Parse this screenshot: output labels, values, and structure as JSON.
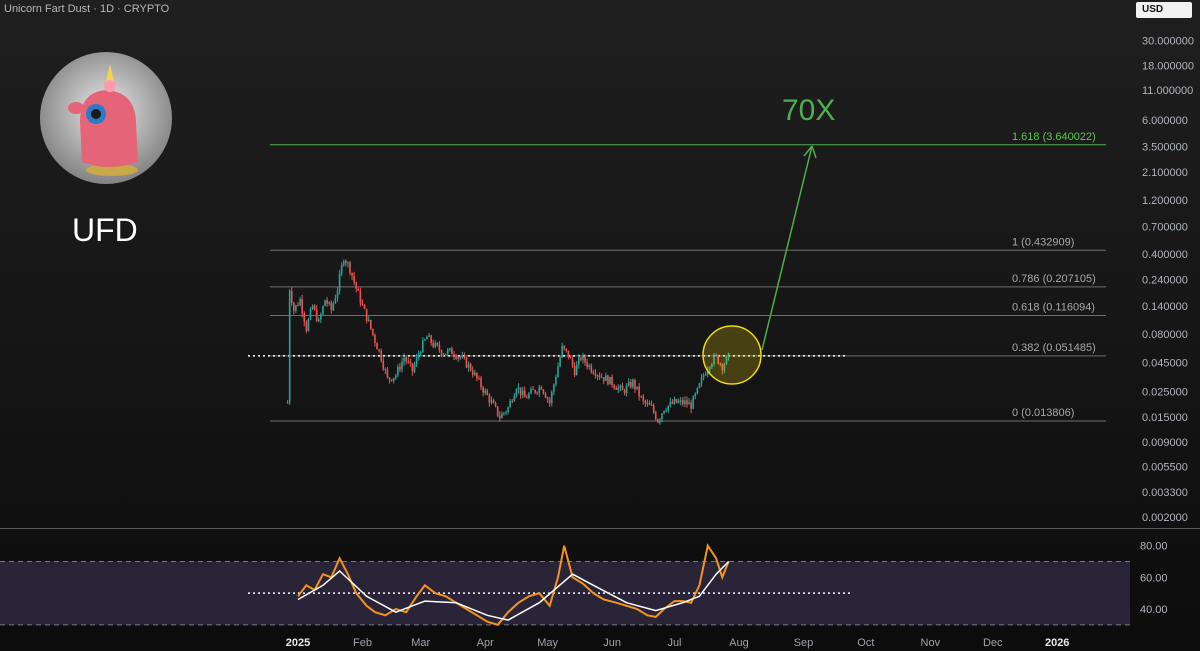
{
  "header": {
    "symbol_line": "Unicorn Fart Dust · 1D · CRYPTO",
    "currency": "USD"
  },
  "ticker": "UFD",
  "colors": {
    "up": "#26a69a",
    "down": "#ef5350",
    "target": "#4caf50",
    "highlight": "#f5d90a",
    "rsi": "#f7931a",
    "rsi_ma": "#ffffff",
    "rsi_band": "#2a2438"
  },
  "icons": {
    "logo": "pink-unicorn-figure-icon"
  },
  "chart_data": [
    {
      "type": "candlestick",
      "scale": "log",
      "ylim": [
        0.0018,
        40
      ],
      "y_ticks": [
        "30.000000",
        "18.000000",
        "11.000000",
        "6.000000",
        "3.500000",
        "2.100000",
        "1.200000",
        "0.700000",
        "0.400000",
        "0.240000",
        "0.140000",
        "0.080000",
        "0.045000",
        "0.025000",
        "0.015000",
        "0.009000",
        "0.005500",
        "0.003300",
        "0.002000"
      ],
      "x_ticks": [
        "2025",
        "Feb",
        "Mar",
        "Apr",
        "May",
        "Jun",
        "Jul",
        "Aug",
        "Sep",
        "Oct",
        "Nov",
        "Dec",
        "2026"
      ],
      "fib_levels": [
        {
          "label": "1.618 (3.640022)",
          "value": 3.640022
        },
        {
          "label": "1 (0.432909)",
          "value": 0.432909
        },
        {
          "label": "0.786 (0.207105)",
          "value": 0.207105
        },
        {
          "label": "0.618 (0.116094)",
          "value": 0.116094
        },
        {
          "label": "0.382 (0.051485)",
          "value": 0.051485
        },
        {
          "label": "0 (0.013806)",
          "value": 0.013806
        }
      ],
      "target_label": "70X",
      "close_path": [
        [
          "2024-12-27",
          0.02
        ],
        [
          "2024-12-28",
          0.2
        ],
        [
          "2024-12-30",
          0.13
        ],
        [
          "2025-01-02",
          0.16
        ],
        [
          "2025-01-05",
          0.09
        ],
        [
          "2025-01-08",
          0.14
        ],
        [
          "2025-01-11",
          0.1
        ],
        [
          "2025-01-14",
          0.16
        ],
        [
          "2025-01-17",
          0.13
        ],
        [
          "2025-01-20",
          0.2
        ],
        [
          "2025-01-23",
          0.38
        ],
        [
          "2025-01-26",
          0.3
        ],
        [
          "2025-01-29",
          0.2
        ],
        [
          "2025-02-01",
          0.14
        ],
        [
          "2025-02-04",
          0.1
        ],
        [
          "2025-02-07",
          0.07
        ],
        [
          "2025-02-10",
          0.05
        ],
        [
          "2025-02-13",
          0.032
        ],
        [
          "2025-02-17",
          0.035
        ],
        [
          "2025-02-21",
          0.05
        ],
        [
          "2025-02-25",
          0.038
        ],
        [
          "2025-03-01",
          0.06
        ],
        [
          "2025-03-04",
          0.075
        ],
        [
          "2025-03-08",
          0.062
        ],
        [
          "2025-03-12",
          0.055
        ],
        [
          "2025-03-16",
          0.056
        ],
        [
          "2025-03-20",
          0.05
        ],
        [
          "2025-03-25",
          0.04
        ],
        [
          "2025-03-30",
          0.028
        ],
        [
          "2025-04-04",
          0.02
        ],
        [
          "2025-04-08",
          0.015
        ],
        [
          "2025-04-12",
          0.018
        ],
        [
          "2025-04-16",
          0.028
        ],
        [
          "2025-04-20",
          0.022
        ],
        [
          "2025-04-24",
          0.025
        ],
        [
          "2025-04-28",
          0.028
        ],
        [
          "2025-05-02",
          0.02
        ],
        [
          "2025-05-05",
          0.035
        ],
        [
          "2025-05-08",
          0.06
        ],
        [
          "2025-05-11",
          0.052
        ],
        [
          "2025-05-14",
          0.038
        ],
        [
          "2025-05-17",
          0.05
        ],
        [
          "2025-05-22",
          0.04
        ],
        [
          "2025-05-27",
          0.034
        ],
        [
          "2025-06-01",
          0.03
        ],
        [
          "2025-06-06",
          0.025
        ],
        [
          "2025-06-11",
          0.03
        ],
        [
          "2025-06-16",
          0.02
        ],
        [
          "2025-06-20",
          0.018
        ],
        [
          "2025-06-23",
          0.014
        ],
        [
          "2025-06-26",
          0.018
        ],
        [
          "2025-07-01",
          0.02
        ],
        [
          "2025-07-06",
          0.02
        ],
        [
          "2025-07-09",
          0.019
        ],
        [
          "2025-07-12",
          0.025
        ],
        [
          "2025-07-15",
          0.035
        ],
        [
          "2025-07-18",
          0.045
        ],
        [
          "2025-07-21",
          0.05
        ],
        [
          "2025-07-24",
          0.042
        ],
        [
          "2025-07-27",
          0.05
        ]
      ]
    },
    {
      "type": "line",
      "name": "RSI",
      "ylim": [
        28,
        88
      ],
      "y_ticks": [
        "80.00",
        "60.00",
        "40.00"
      ],
      "bands": [
        30,
        70
      ],
      "midline": 50,
      "series": [
        {
          "name": "",
          "values": [
            [
              "2025-01-01",
              48
            ],
            [
              "2025-01-05",
              55
            ],
            [
              "2025-01-09",
              52
            ],
            [
              "2025-01-13",
              62
            ],
            [
              "2025-01-17",
              60
            ],
            [
              "2025-01-21",
              72
            ],
            [
              "2025-01-25",
              62
            ],
            [
              "2025-01-29",
              50
            ],
            [
              "2025-02-03",
              42
            ],
            [
              "2025-02-07",
              38
            ],
            [
              "2025-02-12",
              36
            ],
            [
              "2025-02-17",
              40
            ],
            [
              "2025-02-22",
              38
            ],
            [
              "2025-02-27",
              48
            ],
            [
              "2025-03-03",
              55
            ],
            [
              "2025-03-08",
              50
            ],
            [
              "2025-03-13",
              48
            ],
            [
              "2025-03-18",
              44
            ],
            [
              "2025-03-23",
              40
            ],
            [
              "2025-03-28",
              36
            ],
            [
              "2025-04-02",
              32
            ],
            [
              "2025-04-07",
              30
            ],
            [
              "2025-04-12",
              38
            ],
            [
              "2025-04-17",
              44
            ],
            [
              "2025-04-22",
              48
            ],
            [
              "2025-04-27",
              50
            ],
            [
              "2025-05-02",
              42
            ],
            [
              "2025-05-06",
              60
            ],
            [
              "2025-05-09",
              80
            ],
            [
              "2025-05-13",
              60
            ],
            [
              "2025-05-18",
              56
            ],
            [
              "2025-05-23",
              50
            ],
            [
              "2025-05-28",
              46
            ],
            [
              "2025-06-03",
              44
            ],
            [
              "2025-06-08",
              42
            ],
            [
              "2025-06-13",
              40
            ],
            [
              "2025-06-18",
              36
            ],
            [
              "2025-06-22",
              35
            ],
            [
              "2025-06-26",
              40
            ],
            [
              "2025-07-01",
              45
            ],
            [
              "2025-07-05",
              45
            ],
            [
              "2025-07-09",
              44
            ],
            [
              "2025-07-13",
              55
            ],
            [
              "2025-07-17",
              80
            ],
            [
              "2025-07-21",
              72
            ],
            [
              "2025-07-24",
              60
            ],
            [
              "2025-07-27",
              70
            ]
          ]
        },
        {
          "name": "",
          "values": [
            [
              "2025-01-01",
              46
            ],
            [
              "2025-01-13",
              55
            ],
            [
              "2025-01-21",
              64
            ],
            [
              "2025-02-03",
              48
            ],
            [
              "2025-02-17",
              38
            ],
            [
              "2025-03-03",
              45
            ],
            [
              "2025-03-18",
              44
            ],
            [
              "2025-04-02",
              36
            ],
            [
              "2025-04-12",
              33
            ],
            [
              "2025-04-27",
              44
            ],
            [
              "2025-05-13",
              62
            ],
            [
              "2025-05-23",
              55
            ],
            [
              "2025-06-08",
              44
            ],
            [
              "2025-06-22",
              39
            ],
            [
              "2025-07-05",
              44
            ],
            [
              "2025-07-13",
              48
            ],
            [
              "2025-07-21",
              62
            ],
            [
              "2025-07-27",
              70
            ]
          ]
        }
      ]
    }
  ]
}
